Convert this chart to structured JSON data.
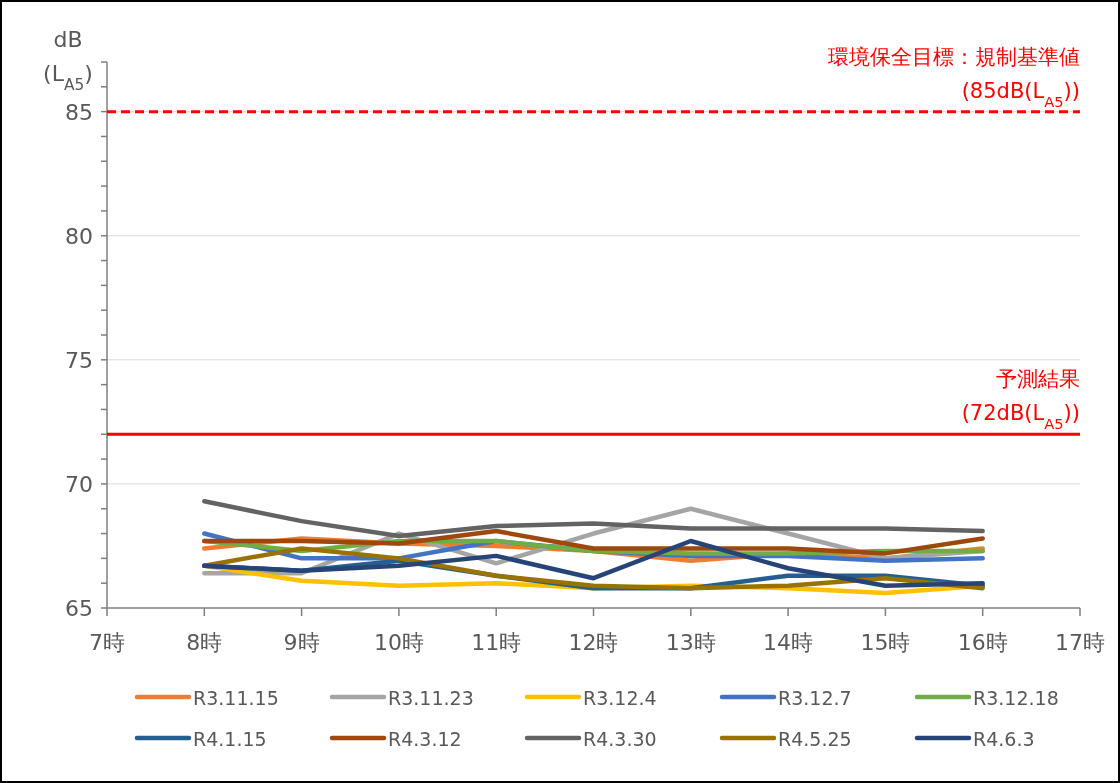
{
  "chart_data": {
    "type": "line",
    "ylabel": "dB\n(L$_{A5}$)",
    "x": [
      8,
      9,
      10,
      11,
      12,
      13,
      14,
      15,
      16
    ],
    "xlim": [
      7,
      17
    ],
    "xticks": [
      {
        "value": 7,
        "label": "7時"
      },
      {
        "value": 8,
        "label": "8時"
      },
      {
        "value": 9,
        "label": "9時"
      },
      {
        "value": 10,
        "label": "10時"
      },
      {
        "value": 11,
        "label": "11時"
      },
      {
        "value": 12,
        "label": "12時"
      },
      {
        "value": 13,
        "label": "13時"
      },
      {
        "value": 14,
        "label": "14時"
      },
      {
        "value": 15,
        "label": "15時"
      },
      {
        "value": 16,
        "label": "16時"
      },
      {
        "value": 17,
        "label": "17時"
      }
    ],
    "ylim": [
      65,
      87
    ],
    "yticks": [
      65,
      {
        "value": 66,
        "label": null
      },
      {
        "value": 67,
        "label": null
      },
      {
        "value": 68,
        "label": null
      },
      {
        "value": 69,
        "label": null
      },
      70,
      {
        "value": 71,
        "label": null
      },
      {
        "value": 72,
        "label": null
      },
      {
        "value": 73,
        "label": null
      },
      {
        "value": 74,
        "label": null
      },
      75,
      {
        "value": 76,
        "label": null
      },
      {
        "value": 77,
        "label": null
      },
      {
        "value": 78,
        "label": null
      },
      {
        "value": 79,
        "label": null
      },
      80,
      {
        "value": 81,
        "label": null
      },
      {
        "value": 82,
        "label": null
      },
      {
        "value": 83,
        "label": null
      },
      {
        "value": 84,
        "label": null
      },
      85,
      {
        "value": 86,
        "label": null
      },
      {
        "value": 87,
        "label": null
      }
    ],
    "grid": "y",
    "legend": "bottom",
    "marker": "none",
    "line_style": "solid",
    "ref_lines": [
      {
        "axis": "y",
        "value": 85,
        "label": "環境保全目標：規制基準値\n(85dB(L$_{A5}$))",
        "color": "#ff0000",
        "line_style": "dashed"
      },
      {
        "axis": "y",
        "value": 72,
        "label": "予測結果\n(72dB(L$_{A5}$))",
        "color": "#ff0000",
        "line_style": "solid"
      }
    ],
    "series": [
      {
        "name": "R3.11.15",
        "color": "#ed7d31",
        "values": [
          67.4,
          67.8,
          67.6,
          67.5,
          67.3,
          66.9,
          67.2,
          67.0,
          67.4
        ]
      },
      {
        "name": "R3.11.23",
        "color": "#a5a5a5",
        "values": [
          66.4,
          66.4,
          68.0,
          66.8,
          68.0,
          69.0,
          68.0,
          67.0,
          67.3
        ]
      },
      {
        "name": "R3.12.4",
        "color": "#ffc000",
        "values": [
          66.7,
          66.1,
          65.9,
          66.0,
          65.8,
          65.9,
          65.8,
          65.6,
          65.9
        ]
      },
      {
        "name": "R3.12.7",
        "color": "#4472c4",
        "values": [
          68.0,
          67.0,
          67.0,
          67.7,
          67.3,
          67.1,
          67.1,
          66.9,
          67.0
        ]
      },
      {
        "name": "R3.12.18",
        "color": "#70ad47",
        "values": [
          67.7,
          67.3,
          67.7,
          67.7,
          67.3,
          67.2,
          67.2,
          67.3,
          67.3
        ]
      },
      {
        "name": "R4.1.15",
        "color": "#255e91",
        "values": [
          66.7,
          66.5,
          66.9,
          66.3,
          65.8,
          65.8,
          66.3,
          66.3,
          65.9
        ]
      },
      {
        "name": "R4.3.12",
        "color": "#9e480e",
        "values": [
          67.7,
          67.7,
          67.6,
          68.1,
          67.4,
          67.4,
          67.4,
          67.2,
          67.8
        ]
      },
      {
        "name": "R4.3.30",
        "color": "#636363",
        "values": [
          69.3,
          68.5,
          67.9,
          68.3,
          68.4,
          68.2,
          68.2,
          68.2,
          68.1
        ]
      },
      {
        "name": "R4.5.25",
        "color": "#997300",
        "values": [
          66.7,
          67.4,
          67.0,
          66.3,
          65.9,
          65.8,
          65.9,
          66.2,
          65.8
        ]
      },
      {
        "name": "R4.6.3",
        "color": "#264478",
        "values": [
          66.7,
          66.5,
          66.7,
          67.1,
          66.2,
          67.7,
          66.6,
          65.9,
          66.0
        ]
      }
    ]
  }
}
